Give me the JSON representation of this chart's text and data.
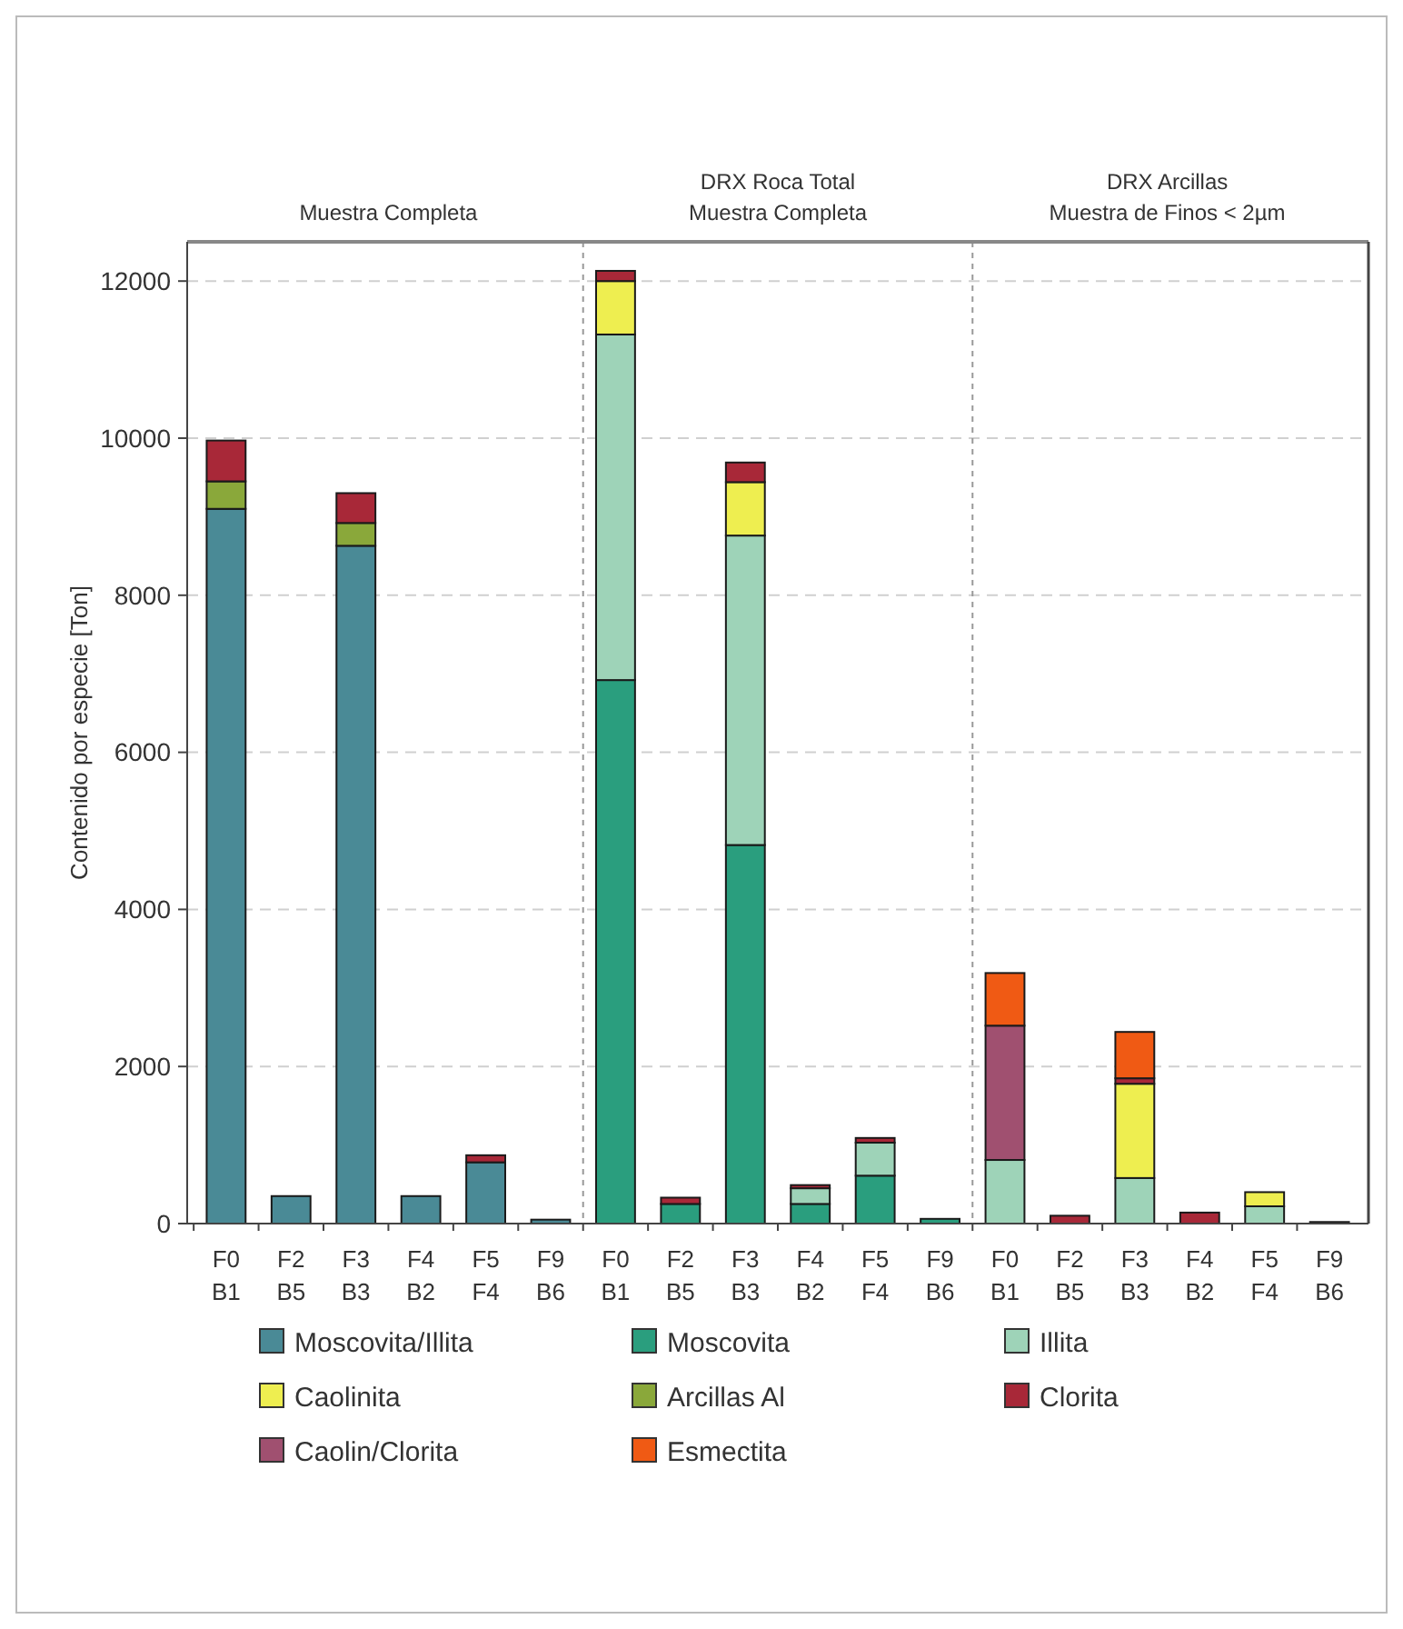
{
  "chart_data": {
    "type": "bar",
    "stacked": true,
    "ylabel": "Contenido por especie [Ton]",
    "annotations": [
      "Muestra Completa",
      "DRX Roca Total\nMuestra Completa",
      "DRX Arcillas\nMuestra de Finos < 2µm"
    ],
    "categories": [
      "F0\nB1",
      "F2\nB5",
      "F3\nB3",
      "F4\nB2",
      "F5\nF4",
      "F9\nB6",
      "F0\nB1",
      "F2\nB5",
      "F3\nB3",
      "F4\nB2",
      "F5\nF4",
      "F9\nB6",
      "F0\nB1",
      "F2\nB5",
      "F3\nB3",
      "F4\nB2",
      "F5\nF4",
      "F9\nB6"
    ],
    "series": [
      {
        "name": "Moscovita/Illita",
        "color": "#4a8a96",
        "values": [
          9100,
          350,
          8630,
          350,
          780,
          50,
          null,
          null,
          null,
          null,
          null,
          null,
          null,
          null,
          null,
          null,
          null,
          null
        ]
      },
      {
        "name": "Moscovita",
        "color": "#2a9e7e",
        "values": [
          null,
          null,
          null,
          null,
          null,
          null,
          6920,
          250,
          4820,
          250,
          610,
          60,
          null,
          null,
          null,
          null,
          null,
          null
        ]
      },
      {
        "name": "Illita",
        "color": "#9ed3b8",
        "values": [
          null,
          null,
          null,
          null,
          null,
          null,
          4400,
          null,
          3940,
          200,
          420,
          null,
          810,
          null,
          580,
          null,
          220,
          null
        ]
      },
      {
        "name": "Caolinita",
        "color": "#eeee50",
        "values": [
          null,
          null,
          null,
          null,
          null,
          null,
          680,
          null,
          680,
          null,
          null,
          null,
          null,
          null,
          1200,
          null,
          180,
          null
        ]
      },
      {
        "name": "Arcillas Al",
        "color": "#8aa83a",
        "values": [
          350,
          null,
          290,
          null,
          null,
          null,
          null,
          null,
          null,
          null,
          null,
          null,
          null,
          null,
          null,
          null,
          null,
          null
        ]
      },
      {
        "name": "Clorita",
        "color": "#a82838",
        "values": [
          520,
          null,
          380,
          null,
          90,
          null,
          130,
          80,
          250,
          40,
          60,
          null,
          null,
          100,
          70,
          140,
          null,
          20
        ]
      },
      {
        "name": "Caolin/Clorita",
        "color": "#a05070",
        "values": [
          null,
          null,
          null,
          null,
          null,
          null,
          null,
          null,
          null,
          null,
          null,
          null,
          1710,
          null,
          null,
          null,
          null,
          null
        ]
      },
      {
        "name": "Esmectita",
        "color": "#f05a14",
        "values": [
          null,
          null,
          null,
          null,
          null,
          null,
          null,
          null,
          null,
          null,
          null,
          null,
          670,
          null,
          590,
          null,
          null,
          null
        ]
      }
    ],
    "ylim": [
      0,
      12500
    ],
    "yticks": [
      0,
      2000,
      4000,
      6000,
      8000,
      10000,
      12000
    ],
    "grid": "y",
    "legend": "bottom"
  }
}
